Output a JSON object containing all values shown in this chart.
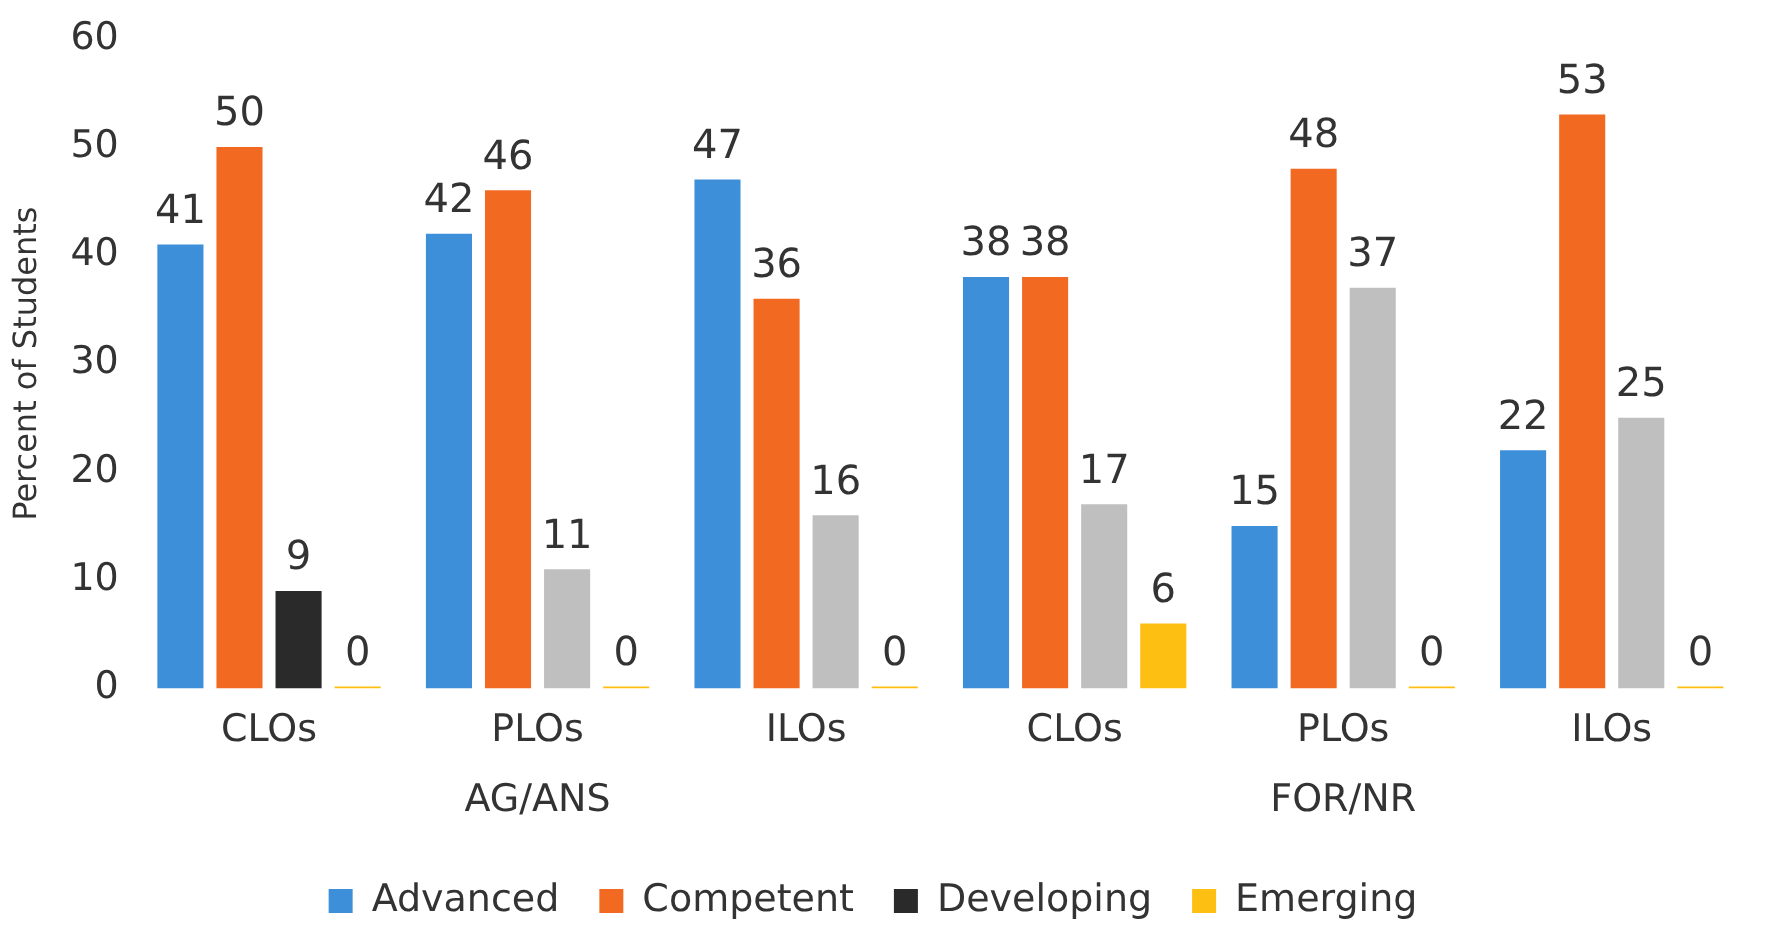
{
  "chart_data": {
    "type": "bar",
    "ylabel": "Percent of Students",
    "categories": [
      "CLOs",
      "PLOs",
      "ILOs",
      "CLOs",
      "PLOs",
      "ILOs"
    ],
    "series": [
      {
        "name": "Advanced",
        "color": "#3d8fd9",
        "values": [
          41,
          42,
          47,
          38,
          15,
          22
        ]
      },
      {
        "name": "Competent",
        "color": "#f26a22",
        "values": [
          50,
          46,
          36,
          38,
          48,
          53
        ]
      },
      {
        "name": "Developing",
        "color": "#bfbfbf",
        "colors": [
          "#2a2a2a",
          "#bfbfbf",
          "#bfbfbf",
          "#bfbfbf",
          "#bfbfbf",
          "#bfbfbf"
        ],
        "values": [
          9,
          11,
          16,
          17,
          37,
          25
        ]
      },
      {
        "name": "Emerging",
        "color": "#fdbf12",
        "values": [
          0,
          0,
          0,
          6,
          0,
          0
        ]
      }
    ],
    "annotations": [
      "AG/ANS",
      "FOR/NR"
    ],
    "ylim": [
      0,
      60
    ],
    "yticks": [
      0,
      10,
      20,
      30,
      40,
      50,
      60
    ],
    "grid": false,
    "legend": "bottom",
    "data_labels": true
  }
}
